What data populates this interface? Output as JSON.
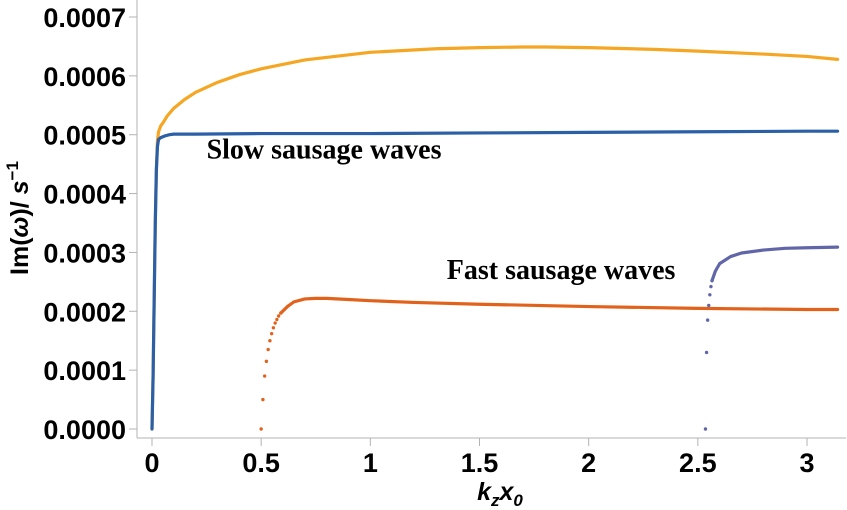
{
  "chart_data": {
    "type": "line",
    "title": "",
    "xlabel": "k_z x_0",
    "ylabel": "Im(ω)/ s⁻¹",
    "xlim": [
      0,
      3.14159
    ],
    "ylim": [
      0,
      0.00075
    ],
    "grid": false,
    "x_ticks": [
      {
        "value": 0,
        "label": "0"
      },
      {
        "value": 0.5,
        "label": "0.5"
      },
      {
        "value": 1,
        "label": "1"
      },
      {
        "value": 1.5,
        "label": "1.5"
      },
      {
        "value": 2,
        "label": "2"
      },
      {
        "value": 2.5,
        "label": "2.5"
      },
      {
        "value": 3,
        "label": "3"
      }
    ],
    "y_ticks": [
      {
        "value": 0.0,
        "label": "0.0000"
      },
      {
        "value": 0.0001,
        "label": "0.0001"
      },
      {
        "value": 0.0002,
        "label": "0.0002"
      },
      {
        "value": 0.0003,
        "label": "0.0003"
      },
      {
        "value": 0.0004,
        "label": "0.0004"
      },
      {
        "value": 0.0005,
        "label": "0.0005"
      },
      {
        "value": 0.0006,
        "label": "0.0006"
      },
      {
        "value": 0.0007,
        "label": "0.0007"
      }
    ],
    "annotations": [
      {
        "text": "Slow sausage waves",
        "x": 0.25,
        "y": 0.00046
      },
      {
        "text": "Fast sausage waves",
        "x": 1.35,
        "y": 0.000255
      }
    ],
    "series": [
      {
        "color": "#f5a623",
        "style": "line",
        "x": [
          0.0,
          0.005,
          0.01,
          0.015,
          0.02,
          0.025,
          0.03,
          0.04,
          0.05,
          0.07,
          0.1,
          0.15,
          0.2,
          0.3,
          0.4,
          0.5,
          0.7,
          1.0,
          1.3,
          1.5,
          1.7,
          1.8,
          2.0,
          2.3,
          2.5,
          2.8,
          3.0,
          3.14
        ],
        "y": [
          0.0,
          9e-05,
          0.00022,
          0.00035,
          0.00044,
          0.00049,
          0.000505,
          0.000515,
          0.00052,
          0.000532,
          0.000545,
          0.00056,
          0.000572,
          0.000589,
          0.000602,
          0.000612,
          0.000627,
          0.00064,
          0.000646,
          0.000648,
          0.000649,
          0.000649,
          0.000648,
          0.000645,
          0.000642,
          0.000637,
          0.000633,
          0.000628
        ]
      },
      {
        "color": "#2b5fa6",
        "style": "line",
        "x": [
          0.0,
          0.005,
          0.01,
          0.015,
          0.02,
          0.025,
          0.03,
          0.04,
          0.06,
          0.08,
          0.1,
          0.2,
          0.5,
          1.0,
          1.5,
          2.0,
          2.5,
          3.0,
          3.14
        ],
        "y": [
          0.0,
          9e-05,
          0.00022,
          0.00035,
          0.00044,
          0.00048,
          0.000492,
          0.000495,
          0.000498,
          0.0005,
          0.000501,
          0.000501,
          0.000502,
          0.000502,
          0.000503,
          0.000504,
          0.000505,
          0.000506,
          0.000506
        ]
      },
      {
        "color": "#e2621b",
        "style": "dots-then-line",
        "dots_x": [
          0.5,
          0.508,
          0.516,
          0.524,
          0.532,
          0.54,
          0.548,
          0.556,
          0.564,
          0.572,
          0.58,
          0.59
        ],
        "dots_y": [
          0.0,
          5e-05,
          9e-05,
          0.000115,
          0.000135,
          0.00015,
          0.000162,
          0.000172,
          0.00018,
          0.000186,
          0.000192,
          0.000197
        ],
        "x": [
          0.59,
          0.62,
          0.65,
          0.7,
          0.75,
          0.8,
          0.9,
          1.0,
          1.2,
          1.5,
          2.0,
          2.5,
          3.0,
          3.14
        ],
        "y": [
          0.000197,
          0.000208,
          0.000216,
          0.000221,
          0.000222,
          0.000222,
          0.00022,
          0.000218,
          0.000215,
          0.000212,
          0.000208,
          0.000205,
          0.000203,
          0.000203
        ]
      },
      {
        "color": "#6166a8",
        "style": "dots-then-line",
        "dots_x": [
          2.535,
          2.54,
          2.545,
          2.55,
          2.555,
          2.56,
          2.565
        ],
        "dots_y": [
          0.0,
          0.00013,
          0.000185,
          0.00021,
          0.000228,
          0.000242,
          0.000252
        ],
        "x": [
          2.565,
          2.58,
          2.6,
          2.65,
          2.7,
          2.8,
          2.9,
          3.0,
          3.14
        ],
        "y": [
          0.000252,
          0.000268,
          0.000281,
          0.000293,
          0.000299,
          0.000304,
          0.000307,
          0.000308,
          0.000309
        ]
      }
    ]
  }
}
